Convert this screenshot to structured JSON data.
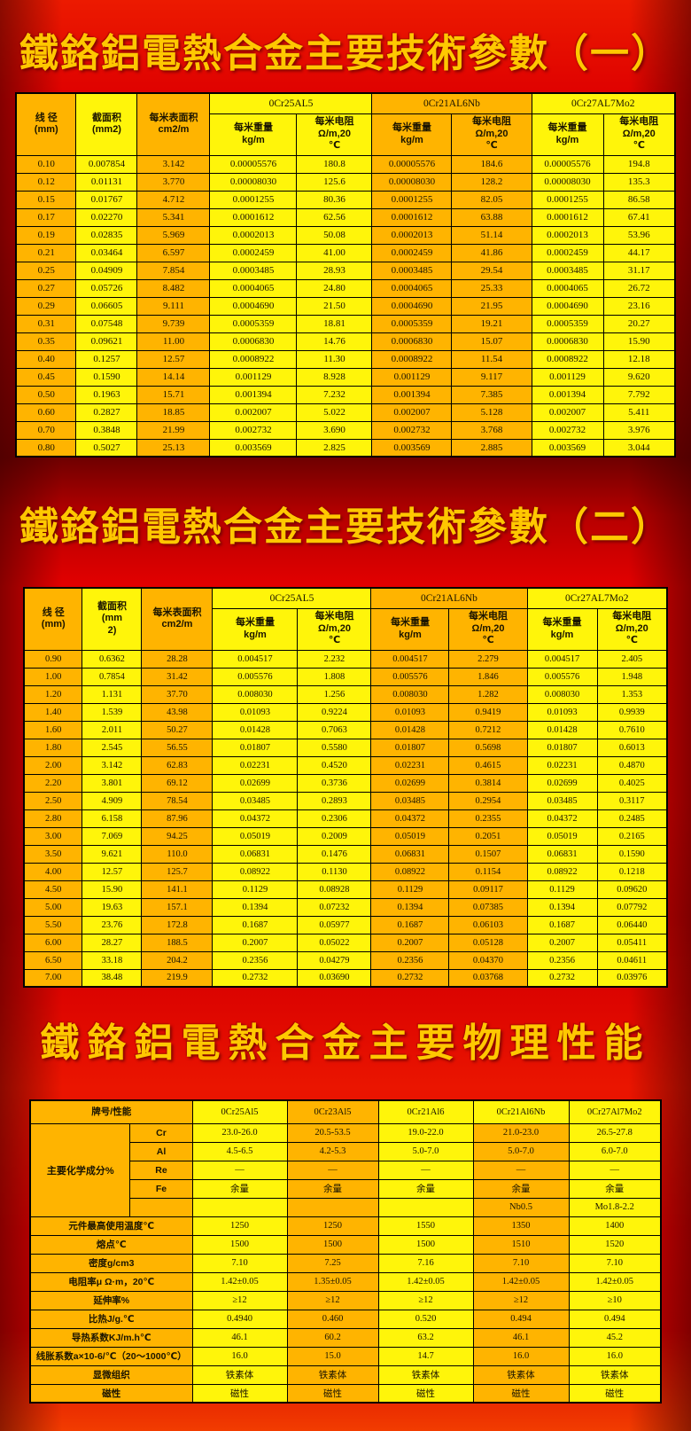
{
  "colors": {
    "gold": "#FFB400",
    "yellow": "#FFF50A",
    "title_gold": "#FFC800",
    "background_red": "#E30000",
    "grid_line": "#000000"
  },
  "titles": {
    "t1": "鐵鉻鋁電熱合金主要技術參數（一）",
    "t2": "鐵鉻鋁電熱合金主要技術參數（二）",
    "t3": "鐵鉻鋁電熱合金主要物理性能"
  },
  "table1": {
    "headers": {
      "diameter": "线 径\n(mm)",
      "area": "截面积\n(mm2)",
      "surface": "每米表面积\ncm2/m",
      "groups": [
        "0Cr25AL5",
        "0Cr21AL6Nb",
        "0Cr27AL7Mo2"
      ],
      "weight": "每米重量\nkg/m",
      "resistance": "每米电阻\nΩ/m,20\n℃"
    },
    "rows": [
      [
        "0.10",
        "0.007854",
        "3.142",
        "0.00005576",
        "180.8",
        "0.00005576",
        "184.6",
        "0.00005576",
        "194.8"
      ],
      [
        "0.12",
        "0.01131",
        "3.770",
        "0.00008030",
        "125.6",
        "0.00008030",
        "128.2",
        "0.00008030",
        "135.3"
      ],
      [
        "0.15",
        "0.01767",
        "4.712",
        "0.0001255",
        "80.36",
        "0.0001255",
        "82.05",
        "0.0001255",
        "86.58"
      ],
      [
        "0.17",
        "0.02270",
        "5.341",
        "0.0001612",
        "62.56",
        "0.0001612",
        "63.88",
        "0.0001612",
        "67.41"
      ],
      [
        "0.19",
        "0.02835",
        "5.969",
        "0.0002013",
        "50.08",
        "0.0002013",
        "51.14",
        "0.0002013",
        "53.96"
      ],
      [
        "0.21",
        "0.03464",
        "6.597",
        "0.0002459",
        "41.00",
        "0.0002459",
        "41.86",
        "0.0002459",
        "44.17"
      ],
      [
        "0.25",
        "0.04909",
        "7.854",
        "0.0003485",
        "28.93",
        "0.0003485",
        "29.54",
        "0.0003485",
        "31.17"
      ],
      [
        "0.27",
        "0.05726",
        "8.482",
        "0.0004065",
        "24.80",
        "0.0004065",
        "25.33",
        "0.0004065",
        "26.72"
      ],
      [
        "0.29",
        "0.06605",
        "9.111",
        "0.0004690",
        "21.50",
        "0.0004690",
        "21.95",
        "0.0004690",
        "23.16"
      ],
      [
        "0.31",
        "0.07548",
        "9.739",
        "0.0005359",
        "18.81",
        "0.0005359",
        "19.21",
        "0.0005359",
        "20.27"
      ],
      [
        "0.35",
        "0.09621",
        "11.00",
        "0.0006830",
        "14.76",
        "0.0006830",
        "15.07",
        "0.0006830",
        "15.90"
      ],
      [
        "0.40",
        "0.1257",
        "12.57",
        "0.0008922",
        "11.30",
        "0.0008922",
        "11.54",
        "0.0008922",
        "12.18"
      ],
      [
        "0.45",
        "0.1590",
        "14.14",
        "0.001129",
        "8.928",
        "0.001129",
        "9.117",
        "0.001129",
        "9.620"
      ],
      [
        "0.50",
        "0.1963",
        "15.71",
        "0.001394",
        "7.232",
        "0.001394",
        "7.385",
        "0.001394",
        "7.792"
      ],
      [
        "0.60",
        "0.2827",
        "18.85",
        "0.002007",
        "5.022",
        "0.002007",
        "5.128",
        "0.002007",
        "5.411"
      ],
      [
        "0.70",
        "0.3848",
        "21.99",
        "0.002732",
        "3.690",
        "0.002732",
        "3.768",
        "0.002732",
        "3.976"
      ],
      [
        "0.80",
        "0.5027",
        "25.13",
        "0.003569",
        "2.825",
        "0.003569",
        "2.885",
        "0.003569",
        "3.044"
      ]
    ]
  },
  "table2": {
    "headers": {
      "diameter": "线 径\n(mm)",
      "area": "截面积\n(mm\n2)",
      "surface": "每米表面积\ncm2/m",
      "groups": [
        "0Cr25AL5",
        "0Cr21AL6Nb",
        "0Cr27AL7Mo2"
      ],
      "weight": "每米重量\nkg/m",
      "resistance": "每米电阻\nΩ/m,20\n℃"
    },
    "rows": [
      [
        "0.90",
        "0.6362",
        "28.28",
        "0.004517",
        "2.232",
        "0.004517",
        "2.279",
        "0.004517",
        "2.405"
      ],
      [
        "1.00",
        "0.7854",
        "31.42",
        "0.005576",
        "1.808",
        "0.005576",
        "1.846",
        "0.005576",
        "1.948"
      ],
      [
        "1.20",
        "1.131",
        "37.70",
        "0.008030",
        "1.256",
        "0.008030",
        "1.282",
        "0.008030",
        "1.353"
      ],
      [
        "1.40",
        "1.539",
        "43.98",
        "0.01093",
        "0.9224",
        "0.01093",
        "0.9419",
        "0.01093",
        "0.9939"
      ],
      [
        "1.60",
        "2.011",
        "50.27",
        "0.01428",
        "0.7063",
        "0.01428",
        "0.7212",
        "0.01428",
        "0.7610"
      ],
      [
        "1.80",
        "2.545",
        "56.55",
        "0.01807",
        "0.5580",
        "0.01807",
        "0.5698",
        "0.01807",
        "0.6013"
      ],
      [
        "2.00",
        "3.142",
        "62.83",
        "0.02231",
        "0.4520",
        "0.02231",
        "0.4615",
        "0.02231",
        "0.4870"
      ],
      [
        "2.20",
        "3.801",
        "69.12",
        "0.02699",
        "0.3736",
        "0.02699",
        "0.3814",
        "0.02699",
        "0.4025"
      ],
      [
        "2.50",
        "4.909",
        "78.54",
        "0.03485",
        "0.2893",
        "0.03485",
        "0.2954",
        "0.03485",
        "0.3117"
      ],
      [
        "2.80",
        "6.158",
        "87.96",
        "0.04372",
        "0.2306",
        "0.04372",
        "0.2355",
        "0.04372",
        "0.2485"
      ],
      [
        "3.00",
        "7.069",
        "94.25",
        "0.05019",
        "0.2009",
        "0.05019",
        "0.2051",
        "0.05019",
        "0.2165"
      ],
      [
        "3.50",
        "9.621",
        "110.0",
        "0.06831",
        "0.1476",
        "0.06831",
        "0.1507",
        "0.06831",
        "0.1590"
      ],
      [
        "4.00",
        "12.57",
        "125.7",
        "0.08922",
        "0.1130",
        "0.08922",
        "0.1154",
        "0.08922",
        "0.1218"
      ],
      [
        "4.50",
        "15.90",
        "141.1",
        "0.1129",
        "0.08928",
        "0.1129",
        "0.09117",
        "0.1129",
        "0.09620"
      ],
      [
        "5.00",
        "19.63",
        "157.1",
        "0.1394",
        "0.07232",
        "0.1394",
        "0.07385",
        "0.1394",
        "0.07792"
      ],
      [
        "5.50",
        "23.76",
        "172.8",
        "0.1687",
        "0.05977",
        "0.1687",
        "0.06103",
        "0.1687",
        "0.06440"
      ],
      [
        "6.00",
        "28.27",
        "188.5",
        "0.2007",
        "0.05022",
        "0.2007",
        "0.05128",
        "0.2007",
        "0.05411"
      ],
      [
        "6.50",
        "33.18",
        "204.2",
        "0.2356",
        "0.04279",
        "0.2356",
        "0.04370",
        "0.2356",
        "0.04611"
      ],
      [
        "7.00",
        "38.48",
        "219.9",
        "0.2732",
        "0.03690",
        "0.2732",
        "0.03768",
        "0.2732",
        "0.03976"
      ]
    ]
  },
  "table3": {
    "corner": "牌号/性能",
    "grades": [
      "0Cr25Al5",
      "0Cr23Al5",
      "0Cr21Al6",
      "0Cr21Al6Nb",
      "0Cr27Al7Mo2"
    ],
    "chem_label": "主要化学成分%",
    "chem_rows": [
      {
        "label": "Cr",
        "values": [
          "23.0-26.0",
          "20.5-53.5",
          "19.0-22.0",
          "21.0-23.0",
          "26.5-27.8"
        ]
      },
      {
        "label": "Al",
        "values": [
          "4.5-6.5",
          "4.2-5.3",
          "5.0-7.0",
          "5.0-7.0",
          "6.0-7.0"
        ]
      },
      {
        "label": "Re",
        "values": [
          "—",
          "—",
          "—",
          "—",
          "—"
        ]
      },
      {
        "label": "Fe",
        "values": [
          "余量",
          "余量",
          "余量",
          "余量",
          "余量"
        ]
      },
      {
        "label": "",
        "values": [
          "",
          "",
          "",
          "Nb0.5",
          "Mo1.8-2.2"
        ]
      }
    ],
    "prop_rows": [
      {
        "label": "元件最高使用温度℃",
        "values": [
          "1250",
          "1250",
          "1550",
          "1350",
          "1400"
        ]
      },
      {
        "label": "熔点℃",
        "values": [
          "1500",
          "1500",
          "1500",
          "1510",
          "1520"
        ]
      },
      {
        "label": "密度g/cm3",
        "values": [
          "7.10",
          "7.25",
          "7.16",
          "7.10",
          "7.10"
        ]
      },
      {
        "label": "电阻率μ Ω·m，20℃",
        "values": [
          "1.42±0.05",
          "1.35±0.05",
          "1.42±0.05",
          "1.42±0.05",
          "1.42±0.05"
        ]
      },
      {
        "label": "延伸率%",
        "values": [
          "≥12",
          "≥12",
          "≥12",
          "≥12",
          "≥10"
        ]
      },
      {
        "label": "比热J/g.℃",
        "values": [
          "0.4940",
          "0.460",
          "0.520",
          "0.494",
          "0.494"
        ]
      },
      {
        "label": "导热系数KJ/m.h℃",
        "values": [
          "46.1",
          "60.2",
          "63.2",
          "46.1",
          "45.2"
        ]
      },
      {
        "label": "线胀系数a×10-6/℃（20～1000℃）",
        "values": [
          "16.0",
          "15.0",
          "14.7",
          "16.0",
          "16.0"
        ]
      },
      {
        "label": "显微组织",
        "values": [
          "铁素体",
          "铁素体",
          "铁素体",
          "铁素体",
          "铁素体"
        ]
      },
      {
        "label": "磁性",
        "values": [
          "磁性",
          "磁性",
          "磁性",
          "磁性",
          "磁性"
        ]
      }
    ]
  }
}
